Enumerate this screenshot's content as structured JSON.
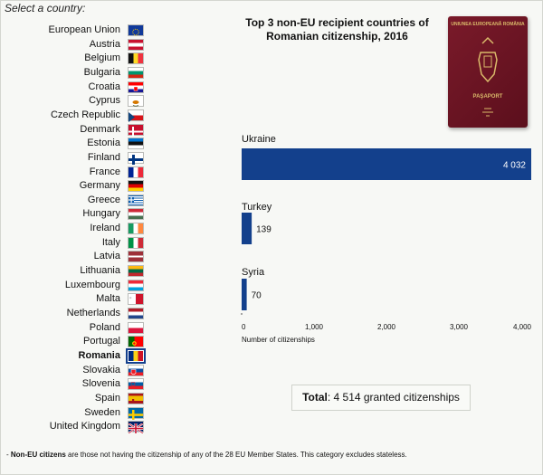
{
  "select_label": "Select a country:",
  "selected_country": "Romania",
  "countries": [
    {
      "name": "European Union",
      "flag": "eu"
    },
    {
      "name": "Austria",
      "flag": "at"
    },
    {
      "name": "Belgium",
      "flag": "be"
    },
    {
      "name": "Bulgaria",
      "flag": "bg"
    },
    {
      "name": "Croatia",
      "flag": "hr"
    },
    {
      "name": "Cyprus",
      "flag": "cy"
    },
    {
      "name": "Czech Republic",
      "flag": "cz"
    },
    {
      "name": "Denmark",
      "flag": "dk"
    },
    {
      "name": "Estonia",
      "flag": "ee"
    },
    {
      "name": "Finland",
      "flag": "fi"
    },
    {
      "name": "France",
      "flag": "fr"
    },
    {
      "name": "Germany",
      "flag": "de"
    },
    {
      "name": "Greece",
      "flag": "gr"
    },
    {
      "name": "Hungary",
      "flag": "hu"
    },
    {
      "name": "Ireland",
      "flag": "ie"
    },
    {
      "name": "Italy",
      "flag": "it"
    },
    {
      "name": "Latvia",
      "flag": "lv"
    },
    {
      "name": "Lithuania",
      "flag": "lt"
    },
    {
      "name": "Luxembourg",
      "flag": "lu"
    },
    {
      "name": "Malta",
      "flag": "mt"
    },
    {
      "name": "Netherlands",
      "flag": "nl"
    },
    {
      "name": "Poland",
      "flag": "pl"
    },
    {
      "name": "Portugal",
      "flag": "pt"
    },
    {
      "name": "Romania",
      "flag": "ro"
    },
    {
      "name": "Slovakia",
      "flag": "sk"
    },
    {
      "name": "Slovenia",
      "flag": "si"
    },
    {
      "name": "Spain",
      "flag": "es"
    },
    {
      "name": "Sweden",
      "flag": "se"
    },
    {
      "name": "United Kingdom",
      "flag": "gb"
    }
  ],
  "passport": {
    "top_text": "UNIUNEA EUROPEANĂ ROMÂNIA",
    "bottom_text": "PAŞAPORT"
  },
  "colors": {
    "bar": "#13408c",
    "axis": "#555555"
  },
  "chart_data": {
    "type": "bar",
    "orientation": "horizontal",
    "title": "Top 3 non-EU recipient countries of Romanian citizenship, 2016",
    "categories": [
      "Ukraine",
      "Turkey",
      "Syria"
    ],
    "values": [
      4032,
      139,
      70
    ],
    "value_labels": [
      "4 032",
      "139",
      "70"
    ],
    "xlabel": "Number of citizenships",
    "xlim": [
      0,
      4000
    ],
    "xticks": [
      0,
      1000,
      2000,
      3000,
      4000
    ],
    "xtick_labels": [
      "0",
      "1,000",
      "2,000",
      "3,000",
      "4,000"
    ],
    "grid": false
  },
  "total": {
    "label": "Total",
    "text": ": 4 514 granted citizenships"
  },
  "footnote": {
    "bold": "Non-EU citizens",
    "prefix": "- ",
    "text": " are those not having the citizenship of any of the 28 EU Member States. This category excludes stateless."
  }
}
